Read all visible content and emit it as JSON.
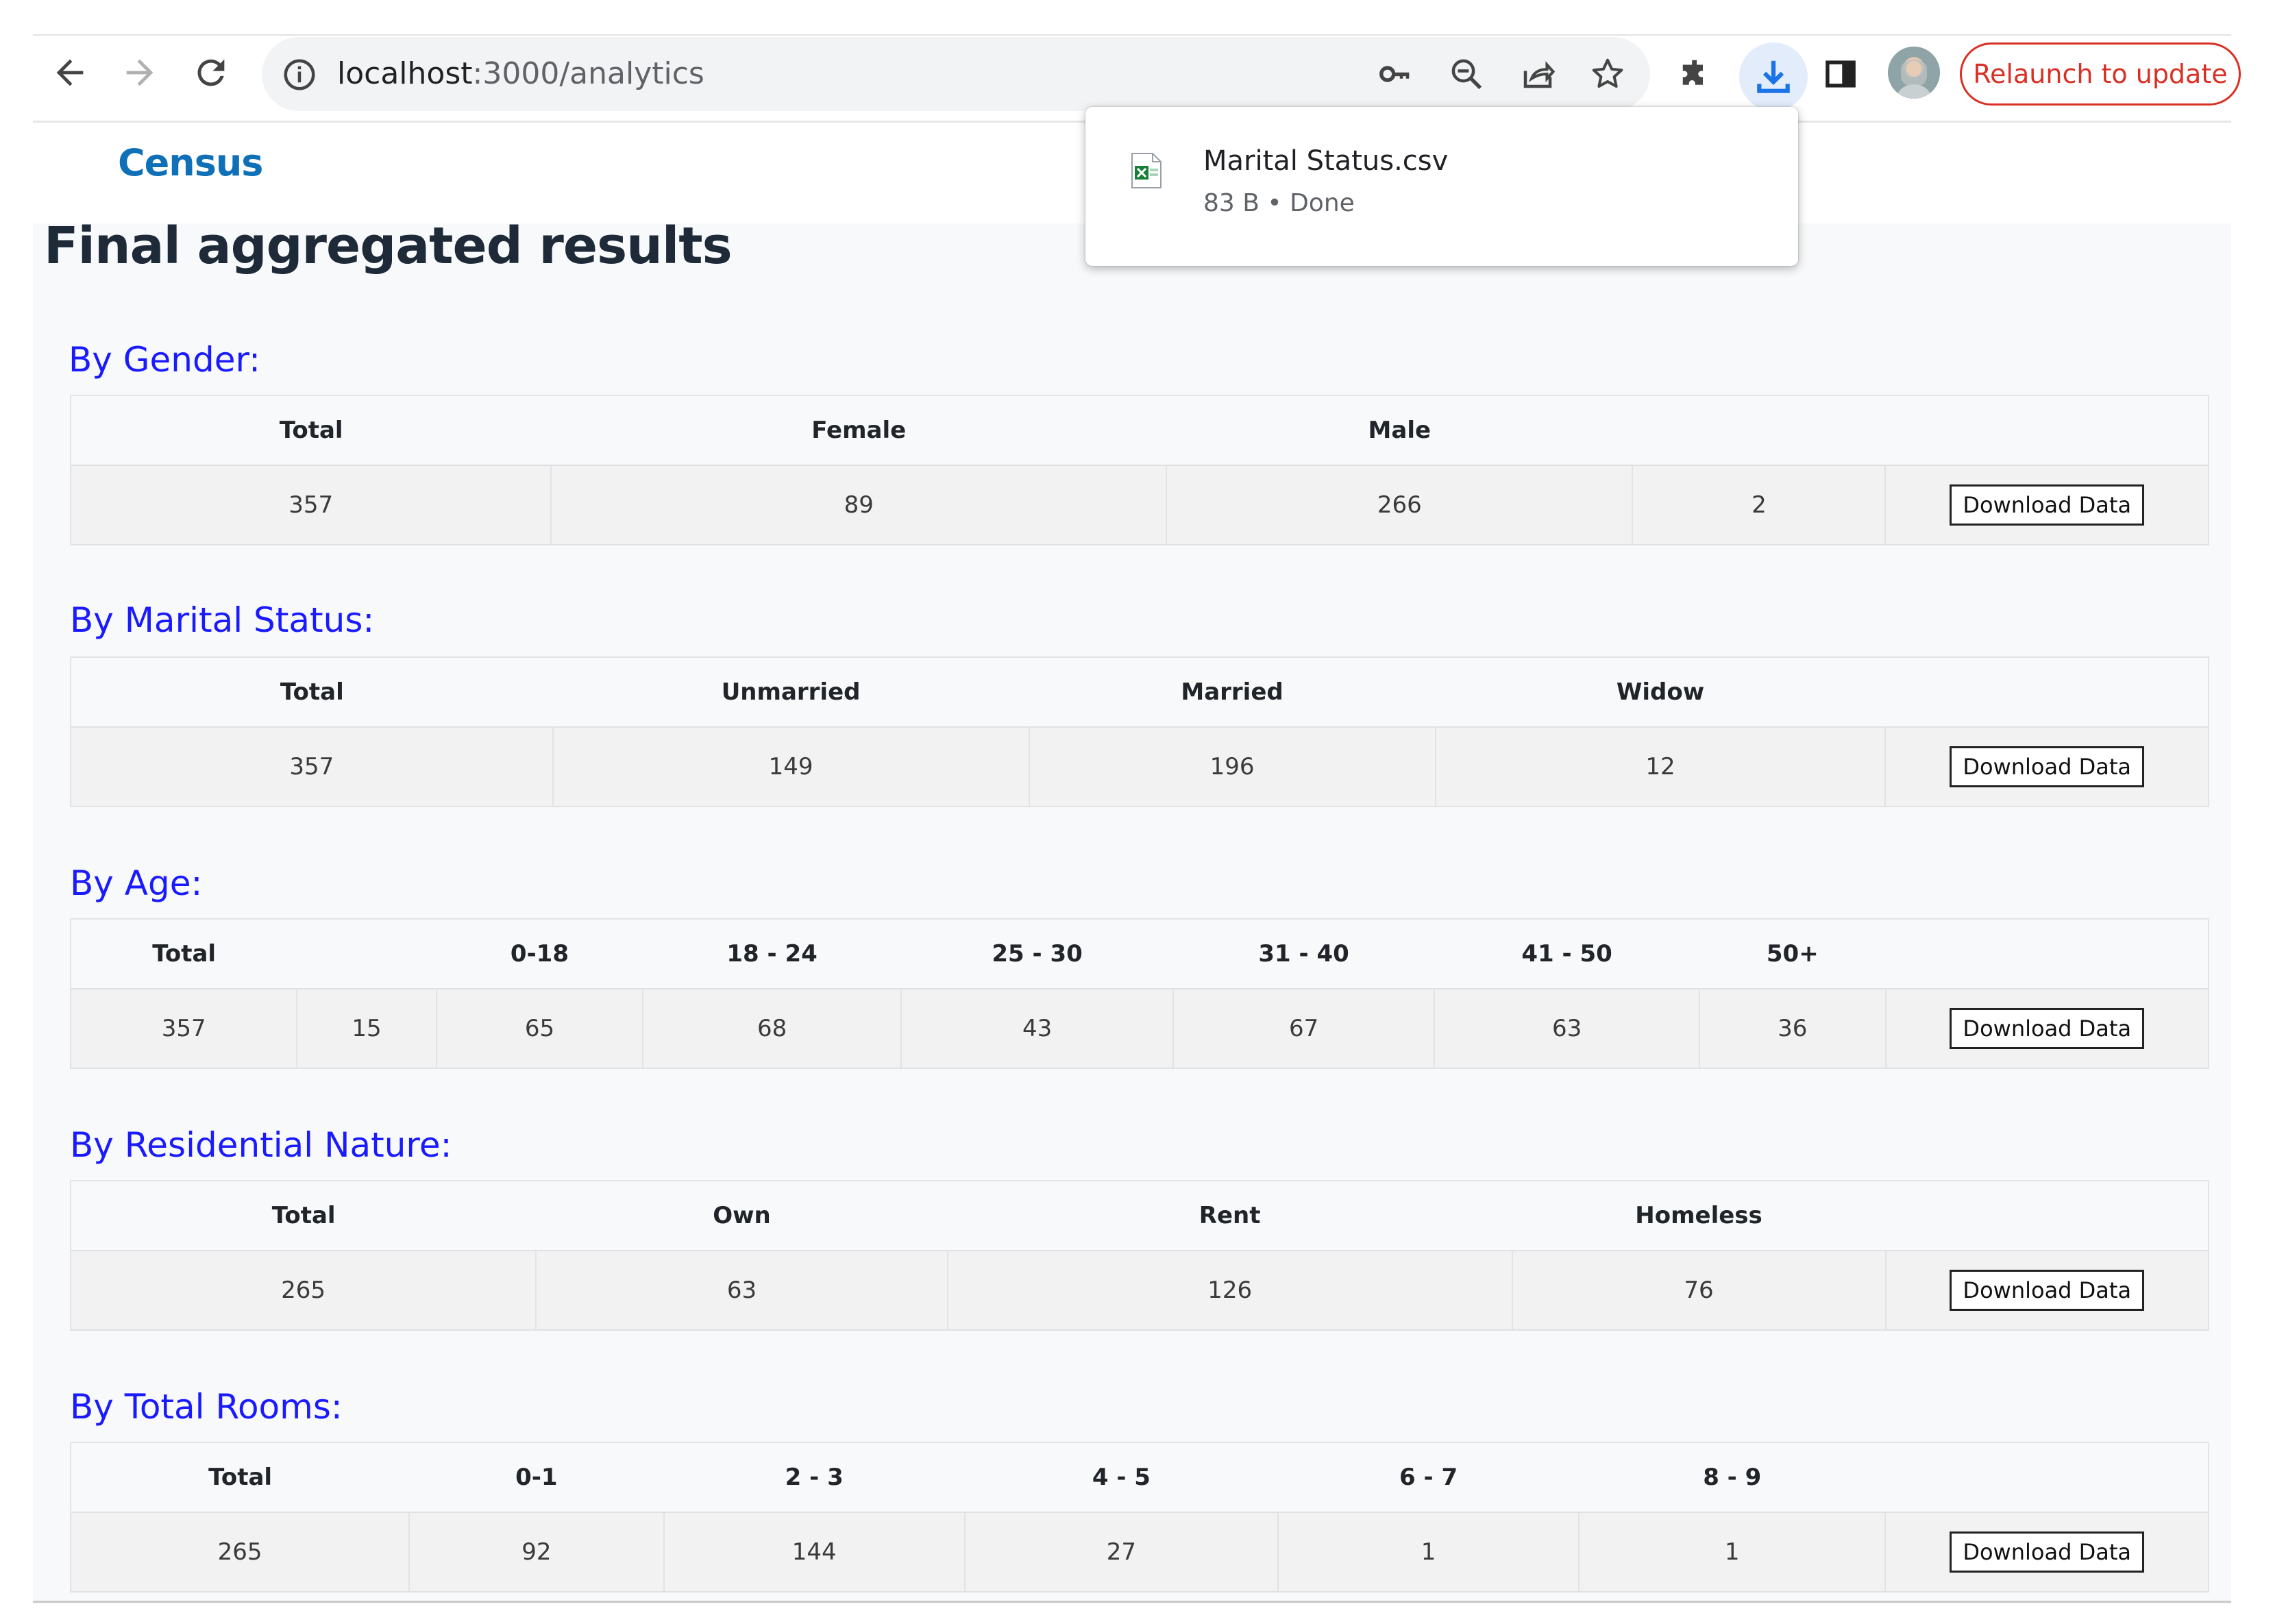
{
  "browser": {
    "url_host": "localhost",
    "url_path": ":3000/analytics",
    "relaunch_label": "Relaunch to update",
    "icons": [
      "back-arrow-icon",
      "forward-arrow-icon",
      "reload-icon",
      "info-icon",
      "key-icon",
      "zoom-out-icon",
      "share-icon",
      "star-icon",
      "extensions-icon",
      "download-icon",
      "side-panel-icon"
    ],
    "accent": "#1a73e8",
    "relaunch_color": "#d93025"
  },
  "download_popup": {
    "file_name": "Marital Status.csv",
    "status": "83 B • Done"
  },
  "app": {
    "brand": "Census",
    "title": "Final aggregated results",
    "download_label": "Download Data"
  },
  "sections": {
    "gender": {
      "title": "By Gender:",
      "headers": [
        "Total",
        "Female",
        "Male",
        "",
        ""
      ],
      "values": [
        "357",
        "89",
        "266",
        "2"
      ]
    },
    "marital": {
      "title": "By Marital Status:",
      "headers": [
        "Total",
        "Unmarried",
        "Married",
        "Widow",
        ""
      ],
      "values": [
        "357",
        "149",
        "196",
        "12"
      ]
    },
    "age": {
      "title": "By Age:",
      "headers": [
        "Total",
        "",
        "0-18",
        "18 - 24",
        "25 - 30",
        "31 - 40",
        "41 - 50",
        "50+",
        ""
      ],
      "values": [
        "357",
        "15",
        "65",
        "68",
        "43",
        "67",
        "63",
        "36"
      ]
    },
    "residential": {
      "title": "By Residential Nature:",
      "headers": [
        "Total",
        "Own",
        "Rent",
        "Homeless",
        ""
      ],
      "values": [
        "265",
        "63",
        "126",
        "76"
      ]
    },
    "rooms": {
      "title": "By Total Rooms:",
      "headers": [
        "Total",
        "0-1",
        "2 - 3",
        "4 - 5",
        "6 - 7",
        "8 - 9",
        ""
      ],
      "values": [
        "265",
        "92",
        "144",
        "27",
        "1",
        "1"
      ]
    }
  },
  "colors": {
    "section_title": "#1a1aff",
    "brand": "#0f6fb7",
    "page_bg": "#f8f9fa"
  }
}
